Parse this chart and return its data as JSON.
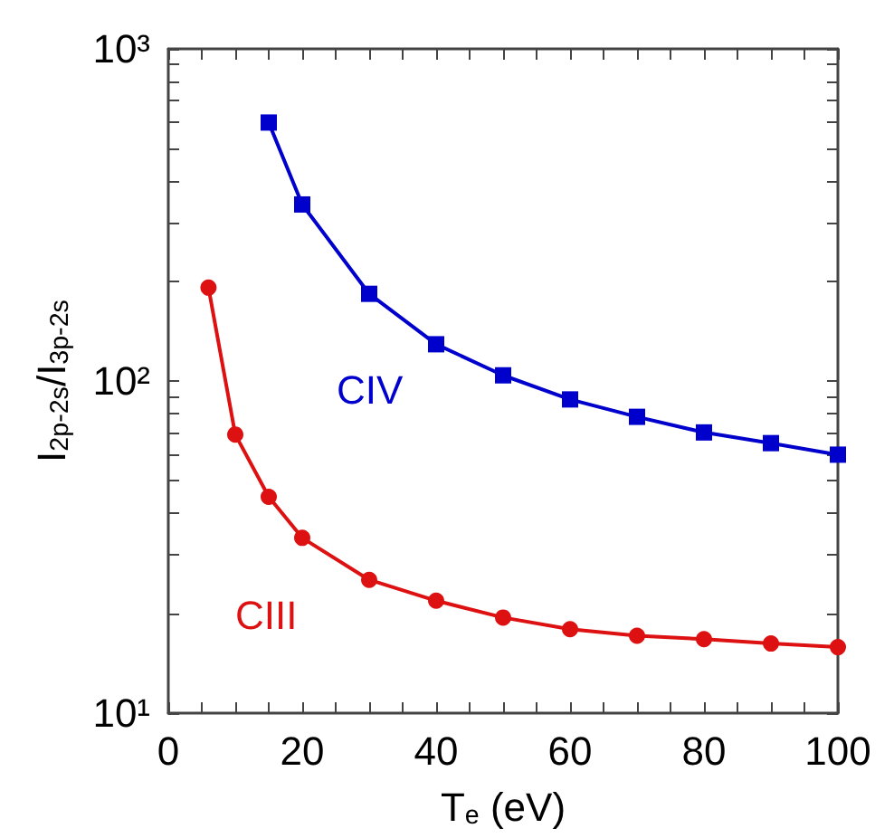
{
  "chart_data": {
    "type": "line",
    "xlabel": "T$_{e}$ (eV)",
    "ylabel": "I$_{2p-2s}$/I$_{3p-2s}$",
    "log": "y",
    "grid": false,
    "legend": false,
    "xlim": [
      0,
      100
    ],
    "xticks": [
      0,
      {
        "value": 5,
        "label": null
      },
      {
        "value": 10,
        "label": null
      },
      {
        "value": 15,
        "label": null
      },
      20,
      {
        "value": 25,
        "label": null
      },
      {
        "value": 30,
        "label": null
      },
      {
        "value": 35,
        "label": null
      },
      40,
      {
        "value": 45,
        "label": null
      },
      {
        "value": 50,
        "label": null
      },
      {
        "value": 55,
        "label": null
      },
      60,
      {
        "value": 65,
        "label": null
      },
      {
        "value": 70,
        "label": null
      },
      {
        "value": 75,
        "label": null
      },
      80,
      {
        "value": 85,
        "label": null
      },
      {
        "value": 90,
        "label": null
      },
      {
        "value": 95,
        "label": null
      },
      100
    ],
    "ylim": [
      10,
      1000
    ],
    "yticks": [
      {
        "value": 10,
        "label": "10¹"
      },
      {
        "value": 20,
        "label": null
      },
      {
        "value": 30,
        "label": null
      },
      {
        "value": 40,
        "label": null
      },
      {
        "value": 50,
        "label": null
      },
      {
        "value": 60,
        "label": null
      },
      {
        "value": 70,
        "label": null
      },
      {
        "value": 80,
        "label": null
      },
      {
        "value": 90,
        "label": null
      },
      {
        "value": 100,
        "label": "10²"
      },
      {
        "value": 200,
        "label": null
      },
      {
        "value": 300,
        "label": null
      },
      {
        "value": 400,
        "label": null
      },
      {
        "value": 500,
        "label": null
      },
      {
        "value": 600,
        "label": null
      },
      {
        "value": 700,
        "label": null
      },
      {
        "value": 800,
        "label": null
      },
      {
        "value": 900,
        "label": null
      },
      {
        "value": 1000,
        "label": "10³"
      }
    ],
    "series": [
      {
        "name": "CIV",
        "color": "#0000cc",
        "marker": "square",
        "x": [
          15,
          20,
          30,
          40,
          50,
          60,
          70,
          80,
          90,
          100
        ],
        "values": [
          600,
          340,
          183,
          129,
          104,
          88,
          78,
          70,
          65,
          60
        ]
      },
      {
        "name": "CIII",
        "color": "#dd1111",
        "marker": "circle",
        "x": [
          6,
          10,
          15,
          20,
          30,
          40,
          50,
          60,
          70,
          80,
          90,
          100
        ],
        "values": [
          191,
          69,
          44.8,
          33.7,
          25.2,
          21.8,
          19.4,
          17.9,
          17.1,
          16.7,
          16.2,
          15.8
        ]
      }
    ]
  }
}
